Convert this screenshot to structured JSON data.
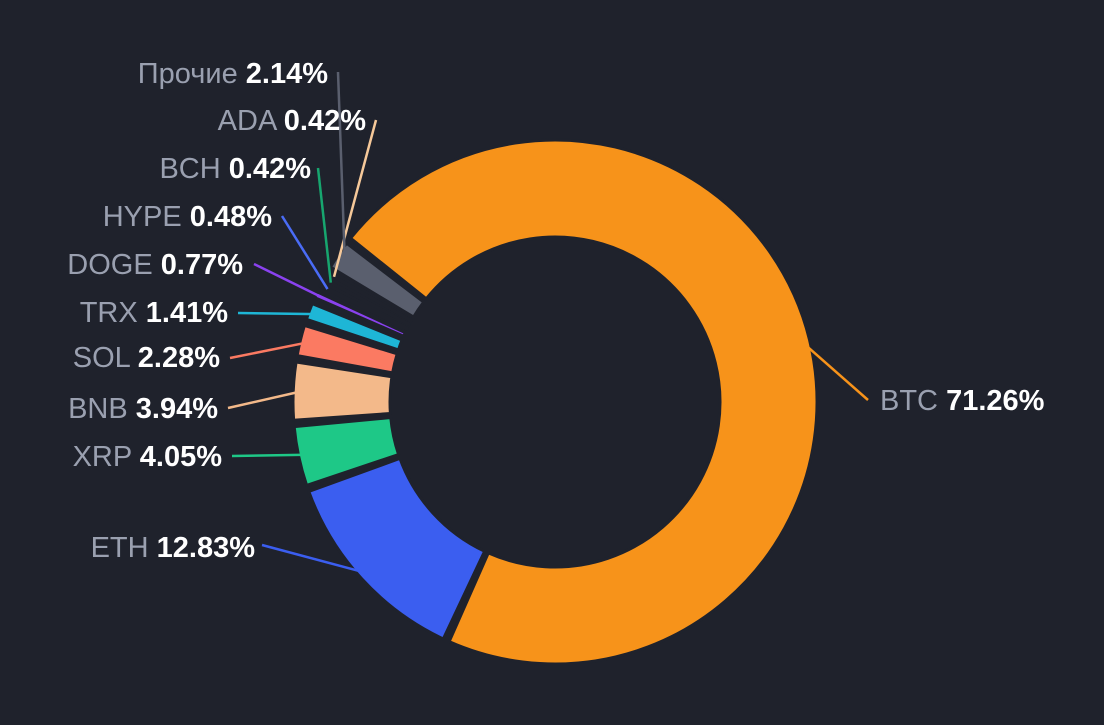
{
  "chart_data": {
    "type": "pie",
    "variant": "donut",
    "title": "",
    "legend": "none",
    "slices": [
      {
        "name": "BTC",
        "label": "BTC",
        "value_text": "71.26%",
        "value": 71.26,
        "color": "#f7931a"
      },
      {
        "name": "ETH",
        "label": "ETH",
        "value_text": "12.83%",
        "value": 12.83,
        "color": "#3b5ef0"
      },
      {
        "name": "XRP",
        "label": "XRP",
        "value_text": "4.05%",
        "value": 4.05,
        "color": "#1ec887"
      },
      {
        "name": "BNB",
        "label": "BNB",
        "value_text": "3.94%",
        "value": 3.94,
        "color": "#f3b98a"
      },
      {
        "name": "SOL",
        "label": "SOL",
        "value_text": "2.28%",
        "value": 2.28,
        "color": "#fb7a62"
      },
      {
        "name": "TRX",
        "label": "TRX",
        "value_text": "1.41%",
        "value": 1.41,
        "color": "#1eb6d6"
      },
      {
        "name": "DOGE",
        "label": "DOGE",
        "value_text": "0.77%",
        "value": 0.77,
        "color": "#8a42f0"
      },
      {
        "name": "HYPE",
        "label": "HYPE",
        "value_text": "0.48%",
        "value": 0.48,
        "color": "#4a6cf6"
      },
      {
        "name": "BCH",
        "label": "BCH",
        "value_text": "0.42%",
        "value": 0.42,
        "color": "#17a66f"
      },
      {
        "name": "ADA",
        "label": "ADA",
        "value_text": "0.42%",
        "value": 0.42,
        "color": "#f6c99a"
      },
      {
        "name": "Others",
        "label": "Прочие",
        "value_text": "2.14%",
        "value": 2.14,
        "color": "#5a5f6e"
      }
    ]
  }
}
